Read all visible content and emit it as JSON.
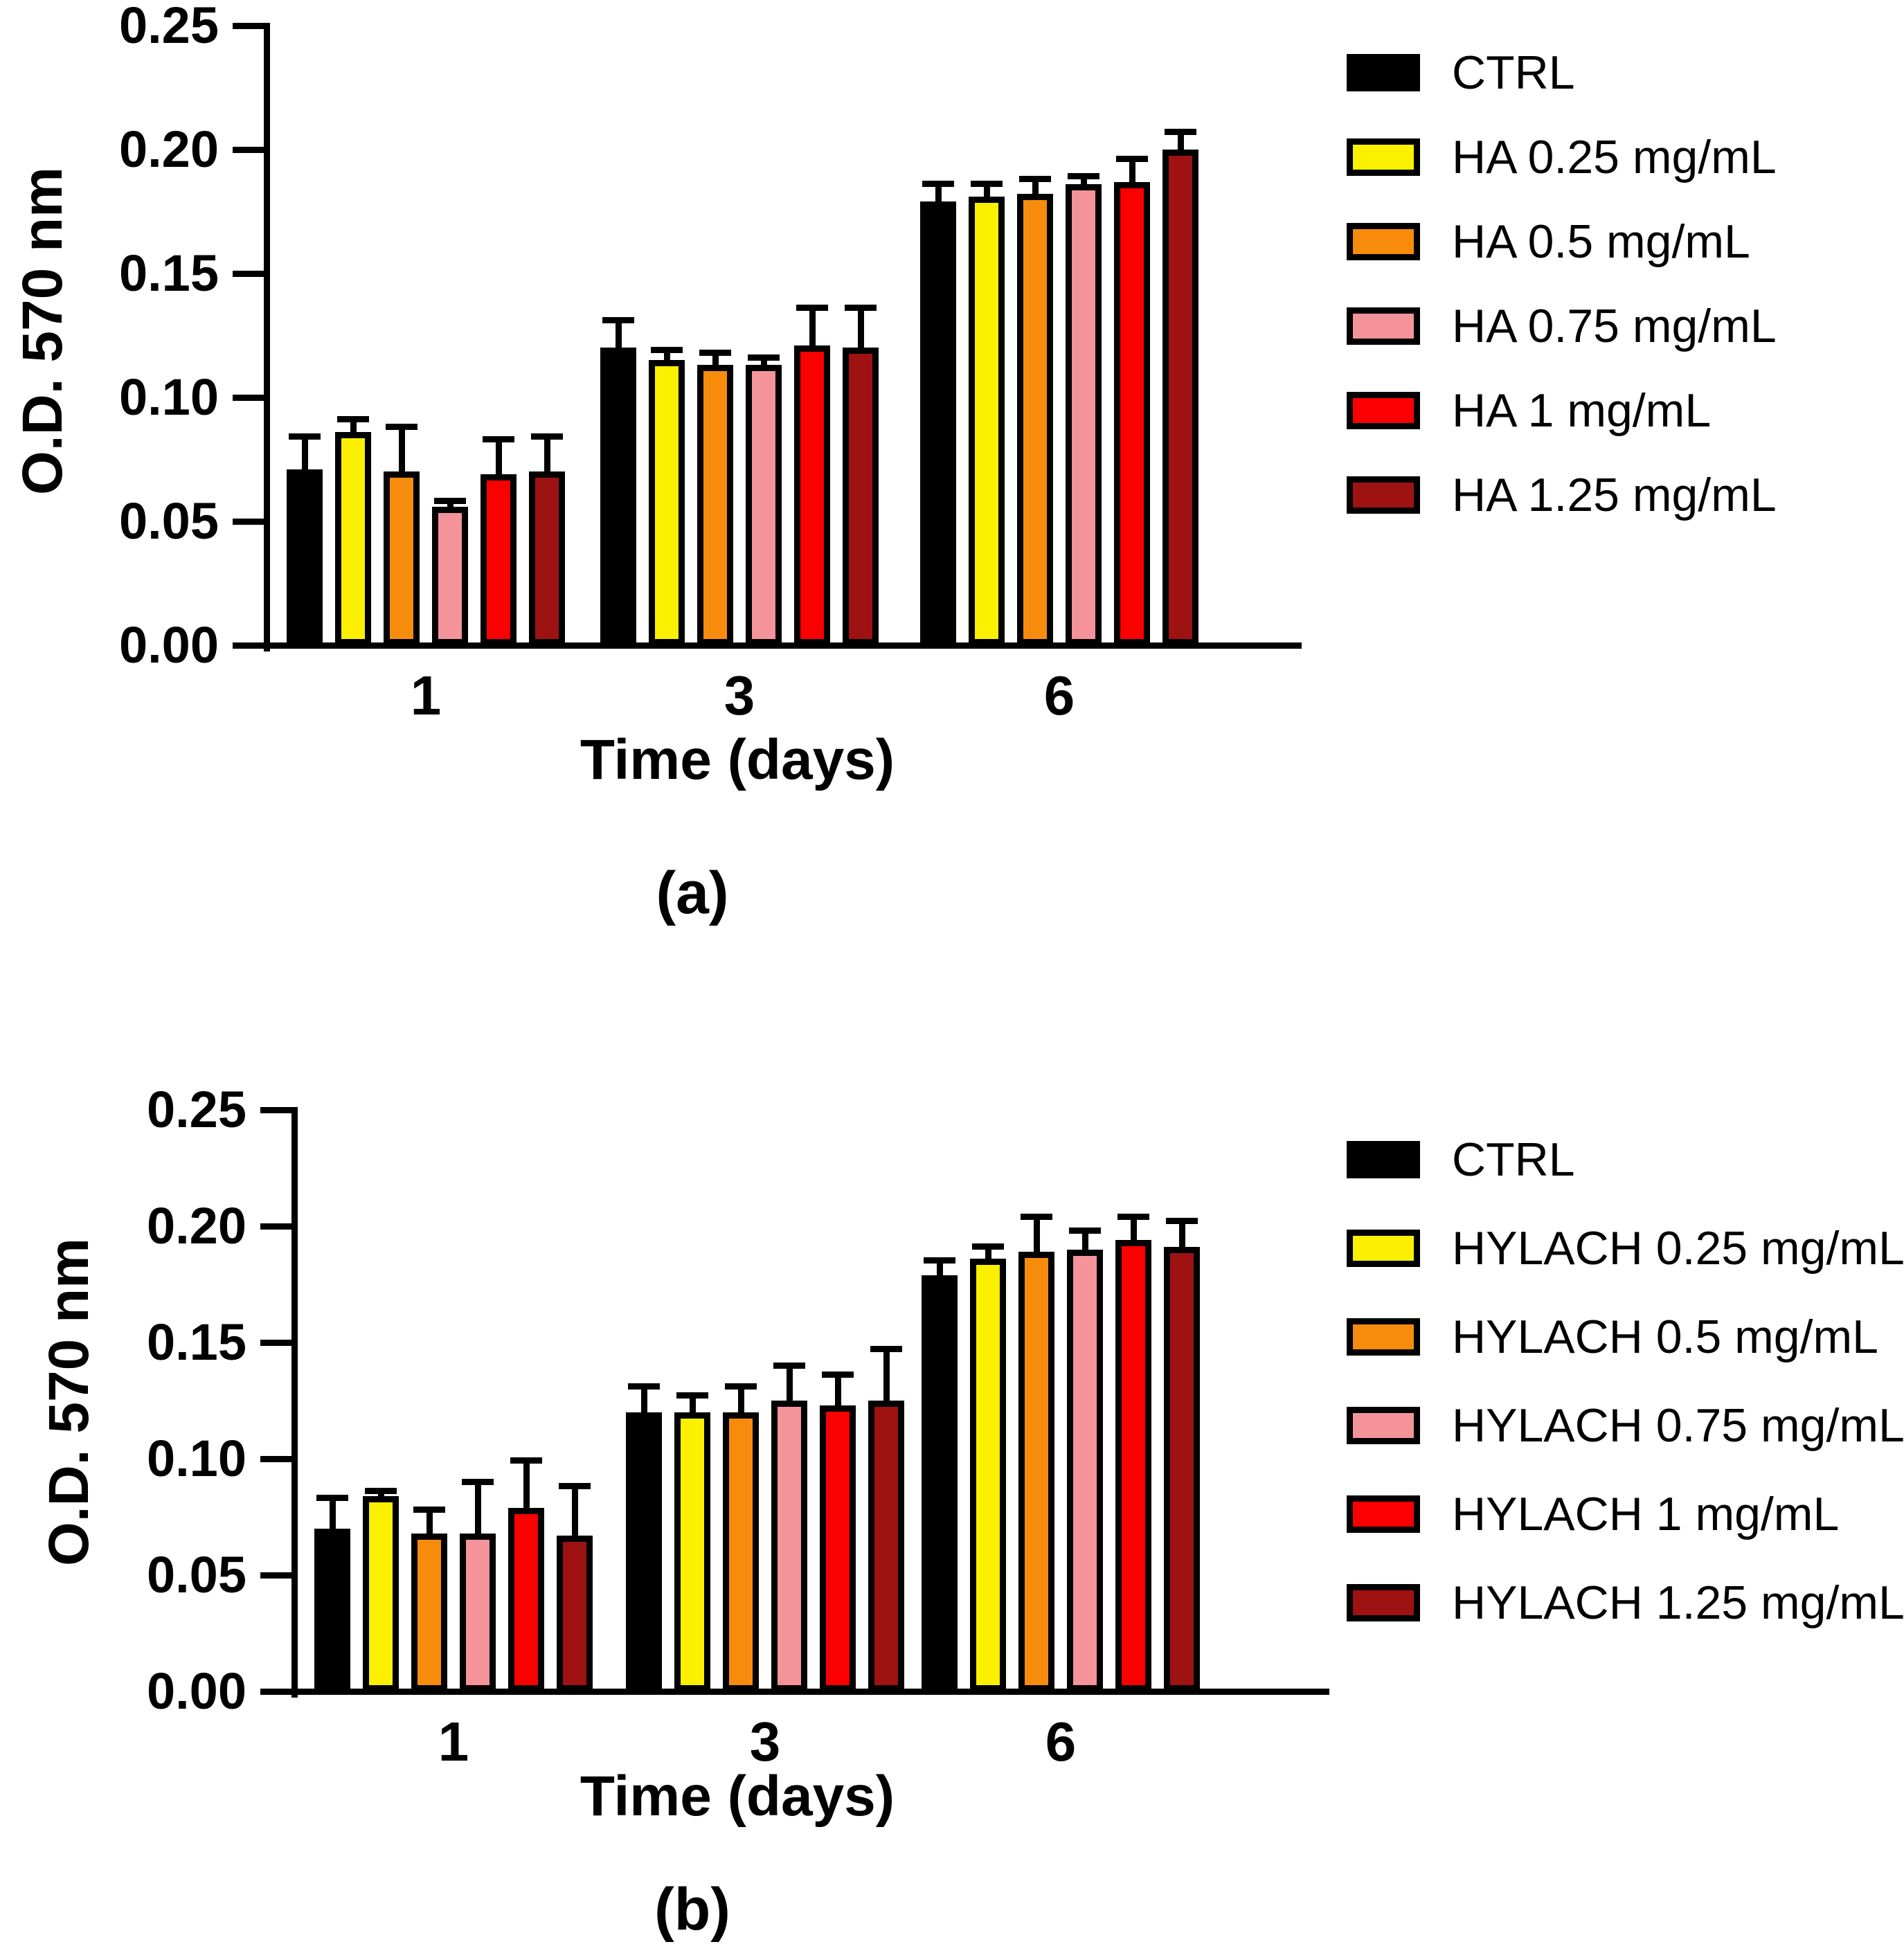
{
  "figure": {
    "background": "#ffffff",
    "axis_color": "#000000",
    "y_tick_labels": [
      "0.00",
      "0.05",
      "0.10",
      "0.15",
      "0.20",
      "0.25"
    ],
    "y_tick_values": [
      0.0,
      0.05,
      0.1,
      0.15,
      0.2,
      0.25
    ]
  },
  "chart_data": [
    {
      "panel": "a",
      "type": "bar",
      "caption": "(a)",
      "ylabel": "O.D. 570 nm",
      "xlabel": "Time (days)",
      "categories": [
        "1",
        "3",
        "6"
      ],
      "ylim": [
        0,
        0.25
      ],
      "ytick_step": 0.05,
      "grid": false,
      "legend_position": "right",
      "series": [
        {
          "name": "CTRL",
          "color": "#000000",
          "values": [
            0.071,
            0.12,
            0.179
          ],
          "errors": [
            0.013,
            0.011,
            0.007
          ]
        },
        {
          "name": "HA 0.25 mg/mL",
          "color": "#FBF000",
          "values": [
            0.086,
            0.115,
            0.181
          ],
          "errors": [
            0.005,
            0.004,
            0.005
          ]
        },
        {
          "name": "HA 0.5 mg/mL",
          "color": "#F78C0C",
          "values": [
            0.07,
            0.113,
            0.182
          ],
          "errors": [
            0.018,
            0.005,
            0.006
          ]
        },
        {
          "name": "HA 0.75 mg/mL",
          "color": "#F4939A",
          "values": [
            0.056,
            0.113,
            0.186
          ],
          "errors": [
            0.002,
            0.003,
            0.003
          ]
        },
        {
          "name": "HA 1 mg/mL",
          "color": "#FA0000",
          "values": [
            0.069,
            0.121,
            0.187
          ],
          "errors": [
            0.014,
            0.015,
            0.009
          ]
        },
        {
          "name": "HA 1.25 mg/mL",
          "color": "#9E1212",
          "values": [
            0.07,
            0.12,
            0.2
          ],
          "errors": [
            0.014,
            0.016,
            0.007
          ]
        }
      ]
    },
    {
      "panel": "b",
      "type": "bar",
      "caption": "(b)",
      "ylabel": "O.D. 570 nm",
      "xlabel": "Time (days)",
      "categories": [
        "1",
        "3",
        "6"
      ],
      "ylim": [
        0,
        0.25
      ],
      "ytick_step": 0.05,
      "grid": false,
      "legend_position": "right",
      "series": [
        {
          "name": "CTRL",
          "color": "#000000",
          "values": [
            0.07,
            0.12,
            0.179
          ],
          "errors": [
            0.013,
            0.011,
            0.006
          ]
        },
        {
          "name": "HYLACH 0.25 mg/mL",
          "color": "#FBF000",
          "values": [
            0.084,
            0.12,
            0.186
          ],
          "errors": [
            0.002,
            0.007,
            0.005
          ]
        },
        {
          "name": "HYLACH 0.5 mg/mL",
          "color": "#F78C0C",
          "values": [
            0.068,
            0.12,
            0.189
          ],
          "errors": [
            0.01,
            0.011,
            0.015
          ]
        },
        {
          "name": "HYLACH 0.75 mg/mL",
          "color": "#F4939A",
          "values": [
            0.068,
            0.125,
            0.19
          ],
          "errors": [
            0.022,
            0.015,
            0.008
          ]
        },
        {
          "name": "HYLACH 1 mg/mL",
          "color": "#FA0000",
          "values": [
            0.079,
            0.123,
            0.194
          ],
          "errors": [
            0.02,
            0.013,
            0.01
          ]
        },
        {
          "name": "HYLACH 1.25 mg/mL",
          "color": "#9E1212",
          "values": [
            0.067,
            0.125,
            0.191
          ],
          "errors": [
            0.021,
            0.022,
            0.011
          ]
        }
      ]
    }
  ]
}
